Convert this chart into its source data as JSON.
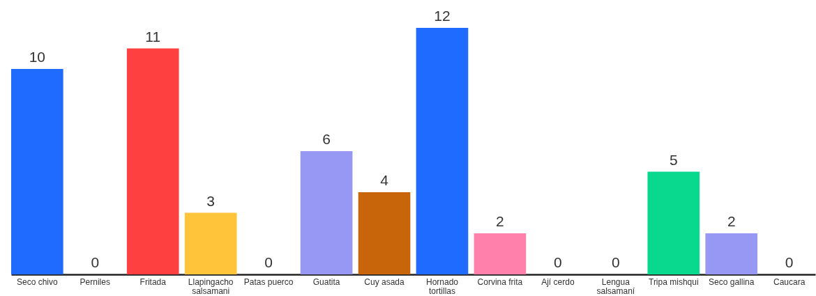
{
  "chart_data": {
    "type": "bar",
    "categories": [
      "Seco chivo",
      "Perniles",
      "Fritada",
      "Llapingacho salsamani",
      "Patas puerco",
      "Guatita",
      "Cuy asada",
      "Hornado tortillas",
      "Corvina frita",
      "Ají cerdo",
      "Lengua salsamaní",
      "Tripa mishqui",
      "Seco gallina",
      "Caucara"
    ],
    "values": [
      10,
      0,
      11,
      3,
      0,
      6,
      4,
      12,
      2,
      0,
      0,
      5,
      2,
      0
    ],
    "colors": [
      "#1f6bff",
      null,
      "#ff4040",
      "#ffc43a",
      null,
      "#9698f4",
      "#c8650a",
      "#1f6bff",
      "#ff80aa",
      null,
      null,
      "#08d98f",
      "#9698f4",
      null
    ],
    "data_labels": true,
    "tick_labels": "x"
  }
}
